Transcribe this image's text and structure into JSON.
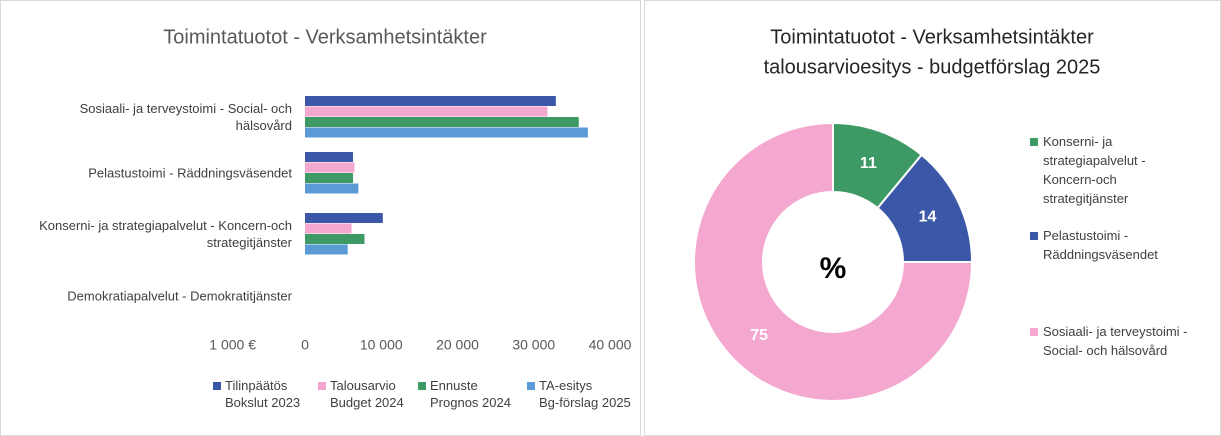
{
  "chart_data": [
    {
      "type": "bar",
      "orientation": "horizontal",
      "title": "Toimintatuotot - Verksamhetsintäkter",
      "unit_label": "1 000 €",
      "categories": [
        "Sosiaali- ja terveystoimi - Social- och hälsovård",
        "Pelastustoimi - Räddningsväsendet",
        "Konserni- ja strategiapalvelut - Koncern-och strategitjänster",
        "Demokratiapalvelut - Demokratitjänster"
      ],
      "series": [
        {
          "name": "Tilinpäätös\nBokslut 2023",
          "color": "#3b57a7",
          "values": [
            32900,
            6300,
            10200,
            0
          ]
        },
        {
          "name": "Talousarvio\nBudget 2024",
          "color": "#f4a7cf",
          "values": [
            31800,
            6500,
            6100,
            0
          ]
        },
        {
          "name": "Ennuste\nPrognos 2024",
          "color": "#3d9a65",
          "values": [
            35900,
            6300,
            7800,
            0
          ]
        },
        {
          "name": "TA-esitys\nBg-förslag 2025",
          "color": "#5b9bd5",
          "values": [
            37100,
            7000,
            5600,
            0
          ]
        }
      ],
      "xlim": [
        0,
        40000
      ],
      "xticks": [
        0,
        {
          "value": 10000,
          "label": "10 000"
        },
        {
          "value": 20000,
          "label": "20 000"
        },
        {
          "value": 30000,
          "label": "30 000"
        },
        {
          "value": 40000,
          "label": "40 000"
        }
      ],
      "legend": "bottom"
    },
    {
      "type": "donut",
      "title": [
        "Toimintatuotot - Verksamhetsintäkter",
        "talousarvioesitys - budgetförslag 2025"
      ],
      "center_label": "%",
      "categories": [
        "Konserni- ja strategiapalvelut - Koncern-och strategitjänster",
        "Pelastustoimi - Räddningsväsendet",
        "Sosiaali- ja terveystoimi - Social- och hälsovård"
      ],
      "values": [
        11,
        14,
        75
      ],
      "colors": [
        "#3d9a65",
        "#3b57a7",
        "#f4a7cf"
      ],
      "legend": "right"
    }
  ]
}
